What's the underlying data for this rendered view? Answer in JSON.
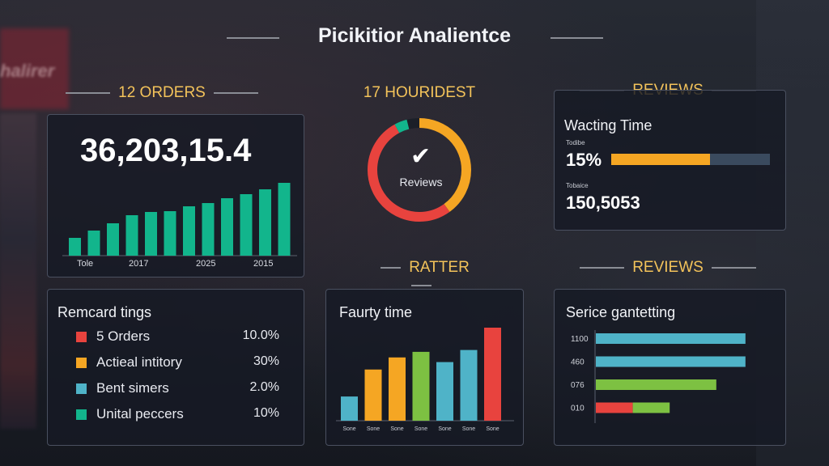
{
  "title": "Picikitior Analientce",
  "background_sign": "halirer",
  "sections": {
    "orders_label": "12 ORDERS",
    "donut_label": "17 HOURIDEST",
    "reviews_top_label": "REVIEWS",
    "ratter_label": "RATTER",
    "reviews_bottom_label": "REVIEWS"
  },
  "orders": {
    "total": "36,203,15.4",
    "x_labels": [
      "Tole",
      "2017",
      "2025",
      "2015"
    ],
    "bars": [
      0.22,
      0.31,
      0.4,
      0.5,
      0.54,
      0.55,
      0.61,
      0.65,
      0.71,
      0.76,
      0.82,
      0.9
    ]
  },
  "donut": {
    "center_label": "Reviews",
    "check_glyph": "✔",
    "segments": [
      {
        "color": "#f5a623",
        "value": 0.4
      },
      {
        "color": "#e8433e",
        "value": 0.52
      },
      {
        "color": "#12b58c",
        "value": 0.04
      },
      {
        "color": "#1b1f28",
        "value": 0.04
      }
    ]
  },
  "reviews_top": {
    "title": "Wacting Time",
    "row1": {
      "tiny": "Todibe",
      "value": "15%",
      "progress": 0.62
    },
    "row2": {
      "tiny": "Tobaice",
      "value": "150,5053"
    }
  },
  "legend": {
    "title": "Remcard tings",
    "items": [
      {
        "label": "5 Orders",
        "value": "10.0%",
        "color": "#e8433e"
      },
      {
        "label": "Actieal intitory",
        "value": "30%",
        "color": "#f5a623"
      },
      {
        "label": "Bent simers",
        "value": "2.0%",
        "color": "#4fb3c8"
      },
      {
        "label": "Unital peccers",
        "value": "10%",
        "color": "#12b58c"
      }
    ]
  },
  "ratter": {
    "title": "Faurty time",
    "tick": "Sone",
    "bars": [
      {
        "color": "#4fb3c8",
        "value": 0.26
      },
      {
        "color": "#f5a623",
        "value": 0.55
      },
      {
        "color": "#f5a623",
        "value": 0.68
      },
      {
        "color": "#7dc142",
        "value": 0.74
      },
      {
        "color": "#4fb3c8",
        "value": 0.63
      },
      {
        "color": "#4fb3c8",
        "value": 0.76
      },
      {
        "color": "#e8433e",
        "value": 1.0
      }
    ]
  },
  "service": {
    "title": "Serice gantetting",
    "rows": [
      {
        "label": "1100",
        "segments": [
          {
            "color": "#4fb3c8",
            "value": 0.77
          }
        ]
      },
      {
        "label": "460",
        "segments": [
          {
            "color": "#4fb3c8",
            "value": 0.77
          }
        ]
      },
      {
        "label": "076",
        "segments": [
          {
            "color": "#7dc142",
            "value": 0.62
          }
        ]
      },
      {
        "label": "010",
        "segments": [
          {
            "color": "#e8433e",
            "value": 0.19
          },
          {
            "color": "#7dc142",
            "value": 0.19
          }
        ]
      }
    ]
  }
}
